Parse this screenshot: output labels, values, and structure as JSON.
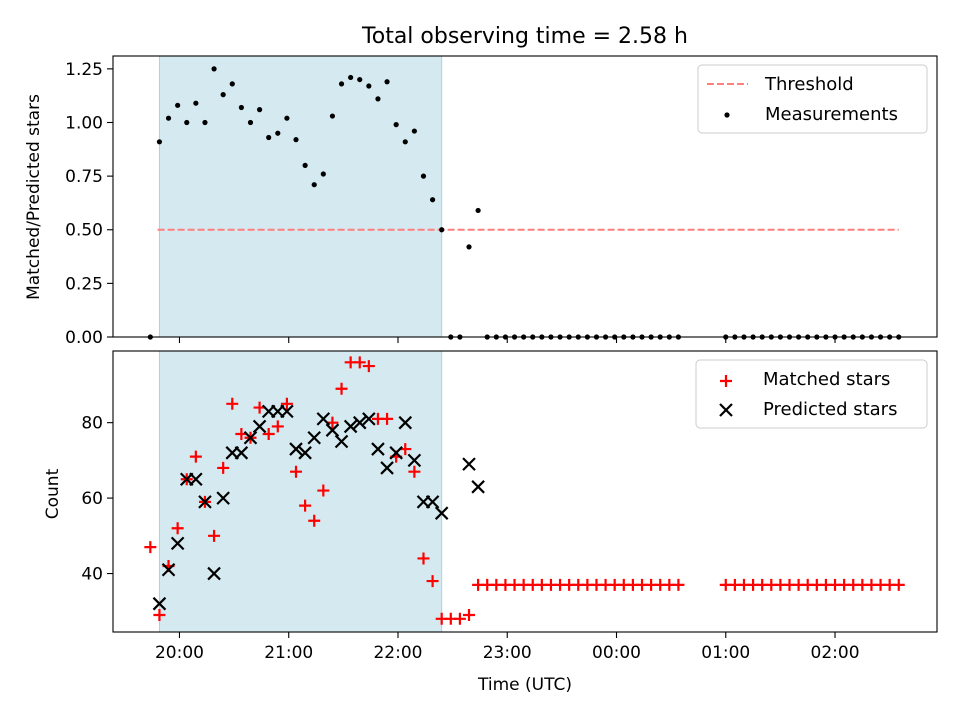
{
  "chart_data": [
    {
      "type": "scatter",
      "title": "Total observing time = 2.58 h",
      "xlabel": "",
      "ylabel": "Matched/Predicted stars",
      "ylim": [
        0.0,
        1.31
      ],
      "yticks": [
        "0.00",
        "0.25",
        "0.50",
        "0.75",
        "1.00",
        "1.25"
      ],
      "grid": false,
      "legend_position": "top-right",
      "shaded_region": {
        "x_start": "19:49",
        "x_end": "22:24",
        "color": "#d4eaf0"
      },
      "threshold": {
        "name": "Threshold",
        "value": 0.5,
        "x_start": "19:48",
        "x_end": "02:35",
        "color": "#ff7f7f"
      },
      "series": [
        {
          "name": "Measurements",
          "color": "#000000",
          "x": [
            "19:44",
            "19:49",
            "19:54",
            "19:59",
            "20:04",
            "20:09",
            "20:14",
            "20:19",
            "20:24",
            "20:29",
            "20:34",
            "20:39",
            "20:44",
            "20:49",
            "20:54",
            "20:59",
            "21:04",
            "21:09",
            "21:14",
            "21:19",
            "21:24",
            "21:29",
            "21:34",
            "21:39",
            "21:44",
            "21:49",
            "21:54",
            "21:59",
            "22:04",
            "22:09",
            "22:14",
            "22:19",
            "22:24",
            "22:29",
            "22:34",
            "22:39",
            "22:44",
            "22:49",
            "22:54",
            "22:59",
            "23:04",
            "23:09",
            "23:14",
            "23:19",
            "23:24",
            "23:29",
            "23:34",
            "23:39",
            "23:44",
            "23:49",
            "23:54",
            "23:59",
            "00:04",
            "00:09",
            "00:14",
            "00:19",
            "00:24",
            "00:29",
            "00:34",
            "01:00",
            "01:05",
            "01:10",
            "01:15",
            "01:20",
            "01:25",
            "01:30",
            "01:35",
            "01:40",
            "01:45",
            "01:50",
            "01:55",
            "02:00",
            "02:05",
            "02:10",
            "02:15",
            "02:20",
            "02:25",
            "02:30",
            "02:35"
          ],
          "y": [
            0.0,
            0.91,
            1.02,
            1.08,
            1.0,
            1.09,
            1.0,
            1.25,
            1.13,
            1.18,
            1.07,
            1.0,
            1.06,
            0.93,
            0.95,
            1.02,
            0.92,
            0.8,
            0.71,
            0.76,
            1.03,
            1.18,
            1.21,
            1.2,
            1.17,
            1.11,
            1.19,
            0.99,
            0.91,
            0.96,
            0.75,
            0.64,
            0.5,
            0.0,
            0.0,
            0.42,
            0.59,
            0.0,
            0.0,
            0.0,
            0.0,
            0.0,
            0.0,
            0.0,
            0.0,
            0.0,
            0.0,
            0.0,
            0.0,
            0.0,
            0.0,
            0.0,
            0.0,
            0.0,
            0.0,
            0.0,
            0.0,
            0.0,
            0.0,
            0.0,
            0.0,
            0.0,
            0.0,
            0.0,
            0.0,
            0.0,
            0.0,
            0.0,
            0.0,
            0.0,
            0.0,
            0.0,
            0.0,
            0.0,
            0.0,
            0.0,
            0.0,
            0.0,
            0.0
          ]
        }
      ]
    },
    {
      "type": "scatter",
      "title": "",
      "xlabel": "Time (UTC)",
      "ylabel": "Count",
      "ylim": [
        24.5,
        99
      ],
      "yticks": [
        "40",
        "60",
        "80"
      ],
      "xticks": [
        "20:00",
        "21:00",
        "22:00",
        "23:00",
        "00:00",
        "01:00",
        "02:00"
      ],
      "grid": false,
      "legend_position": "top-right",
      "shaded_region": {
        "x_start": "19:49",
        "x_end": "22:24",
        "color": "#d4eaf0"
      },
      "series": [
        {
          "name": "Matched stars",
          "marker": "+",
          "color": "#ff0000",
          "x": [
            "19:44",
            "19:49",
            "19:54",
            "19:59",
            "20:04",
            "20:09",
            "20:14",
            "20:19",
            "20:24",
            "20:29",
            "20:34",
            "20:39",
            "20:44",
            "20:49",
            "20:54",
            "20:59",
            "21:04",
            "21:09",
            "21:14",
            "21:19",
            "21:24",
            "21:29",
            "21:34",
            "21:39",
            "21:44",
            "21:49",
            "21:54",
            "21:59",
            "22:04",
            "22:09",
            "22:14",
            "22:19",
            "22:24",
            "22:29",
            "22:34",
            "22:39",
            "22:44",
            "22:49",
            "22:54",
            "22:59",
            "23:04",
            "23:09",
            "23:14",
            "23:19",
            "23:24",
            "23:29",
            "23:34",
            "23:39",
            "23:44",
            "23:49",
            "23:54",
            "23:59",
            "00:04",
            "00:09",
            "00:14",
            "00:19",
            "00:24",
            "00:29",
            "00:34",
            "01:00",
            "01:05",
            "01:10",
            "01:15",
            "01:20",
            "01:25",
            "01:30",
            "01:35",
            "01:40",
            "01:45",
            "01:50",
            "01:55",
            "02:00",
            "02:05",
            "02:10",
            "02:15",
            "02:20",
            "02:25",
            "02:30",
            "02:35"
          ],
          "y": [
            47,
            29,
            42,
            52,
            65,
            71,
            59,
            50,
            68,
            85,
            77,
            76,
            84,
            77,
            79,
            85,
            67,
            58,
            54,
            62,
            80,
            89,
            96,
            96,
            95,
            81,
            81,
            71,
            73,
            67,
            44,
            38,
            28,
            28,
            28,
            29,
            37,
            37,
            37,
            37,
            37,
            37,
            37,
            37,
            37,
            37,
            37,
            37,
            37,
            37,
            37,
            37,
            37,
            37,
            37,
            37,
            37,
            37,
            37,
            37,
            37,
            37,
            37,
            37,
            37,
            37,
            37,
            37,
            37,
            37,
            37,
            37,
            37,
            37,
            37,
            37,
            37,
            37,
            37
          ]
        },
        {
          "name": "Predicted stars",
          "marker": "x",
          "color": "#000000",
          "x": [
            "19:49",
            "19:54",
            "19:59",
            "20:04",
            "20:09",
            "20:14",
            "20:19",
            "20:24",
            "20:29",
            "20:34",
            "20:39",
            "20:44",
            "20:49",
            "20:54",
            "20:59",
            "21:04",
            "21:09",
            "21:14",
            "21:19",
            "21:24",
            "21:29",
            "21:34",
            "21:39",
            "21:44",
            "21:49",
            "21:54",
            "21:59",
            "22:04",
            "22:09",
            "22:14",
            "22:19",
            "22:24",
            "22:39",
            "22:44"
          ],
          "y": [
            32,
            41,
            48,
            65,
            65,
            59,
            40,
            60,
            72,
            72,
            76,
            79,
            83,
            83,
            83,
            73,
            72,
            76,
            81,
            78,
            75,
            79,
            80,
            81,
            73,
            68,
            72,
            80,
            70,
            59,
            59,
            56,
            69,
            63
          ]
        }
      ]
    }
  ]
}
